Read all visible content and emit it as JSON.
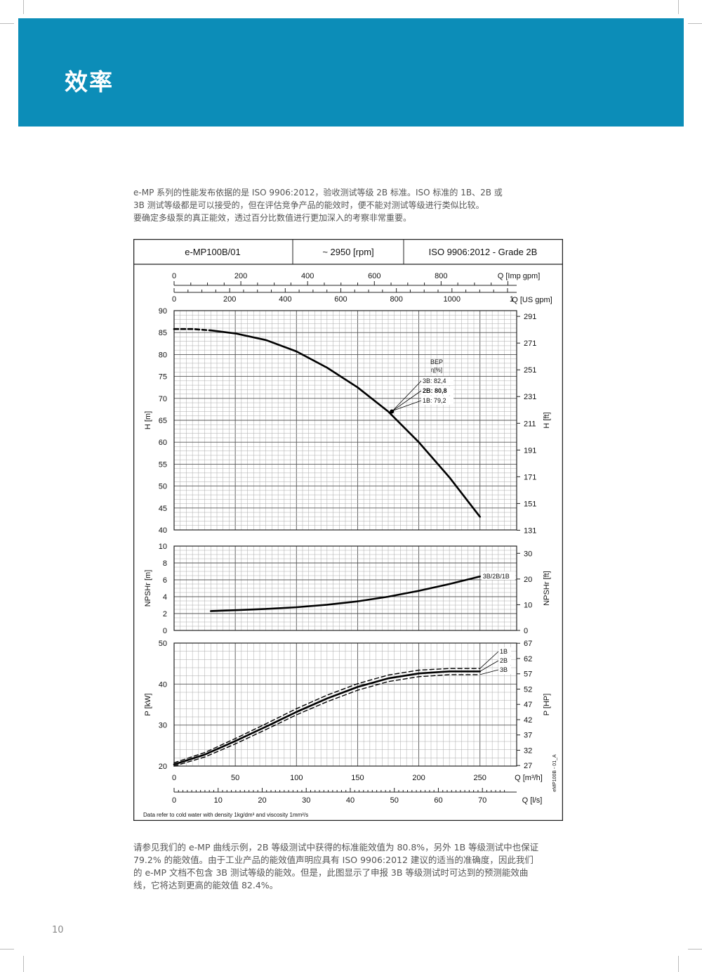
{
  "header": {
    "title": "效率"
  },
  "intro": {
    "lines": [
      "e-MP 系列的性能发布依据的是 ISO 9906:2012，验收测试等级 2B 标准。ISO 标准的 1B、2B 或",
      "3B 测试等级都是可以接受的，但在评估竞争产品的能效时，便不能对测试等级进行类似比较。",
      "要确定多级泵的真正能效，透过百分比数值进行更加深入的考察非常重要。"
    ]
  },
  "outro": {
    "lines": [
      "请参见我们的 e-MP 曲线示例，2B 等级测试中获得的标准能效值为 80.8%，另外 1B 等级测试中也保证",
      "79.2% 的能效值。由于工业产品的能效值声明应具有 ISO 9906:2012 建议的适当的准确度，因此我们",
      "的 e-MP 文档不包含 3B 测试等级的能效。但是，此图显示了申报 3B 等级测试时可达到的预测能效曲",
      "线，它将达到更高的能效值 82.4%。"
    ]
  },
  "page_number": "10",
  "chart_data": {
    "type": "line",
    "header": {
      "model": "e-MP100B/01",
      "speed": "~ 2950 [rpm]",
      "standard": "ISO 9906:2012 - Grade 2B"
    },
    "footnote": "Data refer to cold water with density 1kg/dm³ and viscosity 1mm²/s",
    "code": "eMP100B - 01_A",
    "x_axes": {
      "imp_gpm": {
        "label": "Q [Imp gpm]",
        "ticks": [
          "0",
          "200",
          "400",
          "600",
          "800"
        ]
      },
      "us_gpm": {
        "label": "Q [US gpm]",
        "ticks": [
          "0",
          "200",
          "400",
          "600",
          "800",
          "1000",
          "1"
        ]
      },
      "m3h": {
        "label": "Q [m³/h]",
        "ticks": [
          "0",
          "50",
          "100",
          "150",
          "200",
          "250"
        ],
        "xlim": [
          0,
          280
        ]
      },
      "ls": {
        "label": "Q [l/s]",
        "ticks": [
          "0",
          "10",
          "20",
          "30",
          "40",
          "50",
          "60",
          "70"
        ]
      }
    },
    "head": {
      "ylabel": "H [m]",
      "ylabel_right": "H [ft]",
      "ylim": [
        40,
        90
      ],
      "yticks": [
        "40",
        "45",
        "50",
        "55",
        "60",
        "65",
        "70",
        "75",
        "80",
        "85",
        "90"
      ],
      "yticks_right": [
        "131",
        "151",
        "171",
        "191",
        "211",
        "231",
        "251",
        "271",
        "291"
      ],
      "series": [
        {
          "x": [
            0,
            15,
            30
          ],
          "y": [
            85.8,
            85.8,
            85.5
          ],
          "dashed": true
        },
        {
          "x": [
            30,
            50,
            75,
            100,
            125,
            150,
            175,
            200,
            225,
            250
          ],
          "y": [
            85.5,
            84.8,
            83.3,
            80.7,
            77,
            72.5,
            67,
            60,
            52,
            43
          ]
        }
      ],
      "bep": {
        "x": 178,
        "y": 67,
        "title": "BEP",
        "unit": "η[%]",
        "labels": [
          "3B: 82,4",
          "2B: 80,8",
          "1B: 79,2"
        ]
      }
    },
    "npsh": {
      "ylabel": "NPSHr [m]",
      "ylabel_right": "NPSHr [ft]",
      "ylim": [
        0,
        10
      ],
      "yticks": [
        "0",
        "2",
        "4",
        "6",
        "8",
        "10"
      ],
      "yticks_right": [
        "0",
        "10",
        "20",
        "30"
      ],
      "series": [
        {
          "name": "3B/2B/1B",
          "x": [
            30,
            50,
            75,
            100,
            125,
            150,
            175,
            200,
            225,
            250
          ],
          "y": [
            2.3,
            2.4,
            2.55,
            2.75,
            3.05,
            3.45,
            4,
            4.7,
            5.5,
            6.4
          ]
        }
      ]
    },
    "power": {
      "ylabel": "P [kW]",
      "ylabel_right": "P [HP]",
      "ylim": [
        20,
        50
      ],
      "yticks": [
        "20",
        "30",
        "40",
        "50"
      ],
      "yticks_right": [
        "27",
        "32",
        "37",
        "42",
        "47",
        "52",
        "57",
        "62",
        "67"
      ],
      "series": [
        {
          "name": "1B",
          "dashed": true,
          "x": [
            0,
            25,
            50,
            75,
            100,
            125,
            150,
            175,
            200,
            225,
            250
          ],
          "y": [
            20.8,
            23.3,
            26.7,
            30.3,
            34,
            37.3,
            40.1,
            42.2,
            43.4,
            43.8,
            43.8
          ]
        },
        {
          "name": "2B",
          "x": [
            0,
            25,
            50,
            75,
            100,
            125,
            150,
            175,
            200,
            225,
            250
          ],
          "y": [
            20.4,
            22.8,
            26.1,
            29.6,
            33.2,
            36.5,
            39.3,
            41.4,
            42.6,
            43.1,
            43.1
          ]
        },
        {
          "name": "3B",
          "dashed": true,
          "x": [
            0,
            25,
            50,
            75,
            100,
            125,
            150,
            175,
            200,
            225,
            250
          ],
          "y": [
            20,
            22.2,
            25.4,
            28.9,
            32.5,
            35.7,
            38.5,
            40.6,
            41.8,
            42.3,
            42.3
          ]
        }
      ]
    }
  }
}
